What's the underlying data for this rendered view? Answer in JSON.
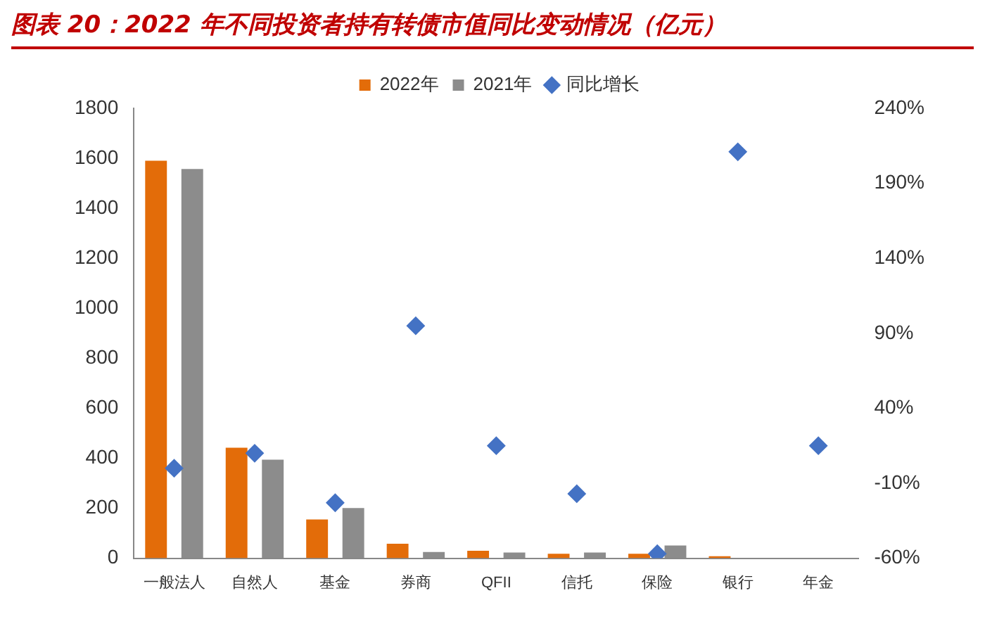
{
  "chart_data": {
    "type": "bar",
    "title": "图表 20：2022 年不同投资者持有转债市值同比变动情况（亿元）",
    "categories": [
      "一般法人",
      "自然人",
      "基金",
      "券商",
      "QFII",
      "信托",
      "保险",
      "银行",
      "年金"
    ],
    "series": [
      {
        "name": "2022年",
        "color": "#e36c09",
        "values": [
          1590,
          442,
          155,
          58,
          30,
          18,
          18,
          8,
          0
        ]
      },
      {
        "name": "2021年",
        "color": "#8c8c8c",
        "values": [
          1557,
          394,
          201,
          25,
          23,
          23,
          51,
          0,
          0
        ]
      },
      {
        "name": "同比增长",
        "type": "scatter",
        "axis": "y2",
        "color": "#4472c4",
        "values": [
          0,
          10,
          -23,
          95,
          15,
          -17,
          -57,
          211,
          15
        ]
      }
    ],
    "ylim": [
      0,
      1800
    ],
    "yticks": [
      0,
      200,
      400,
      600,
      800,
      1000,
      1200,
      1400,
      1600,
      1800
    ],
    "y2lim": [
      -60,
      240
    ],
    "y2ticks": [
      {
        "value": -60,
        "label": "-60%"
      },
      {
        "value": -10,
        "label": "-10%"
      },
      {
        "value": 40,
        "label": "40%"
      },
      {
        "value": 90,
        "label": "90%"
      },
      {
        "value": 140,
        "label": "140%"
      },
      {
        "value": 190,
        "label": "190%"
      },
      {
        "value": 240,
        "label": "240%"
      }
    ],
    "marker": "diamond",
    "legend": "top",
    "grid": false
  }
}
